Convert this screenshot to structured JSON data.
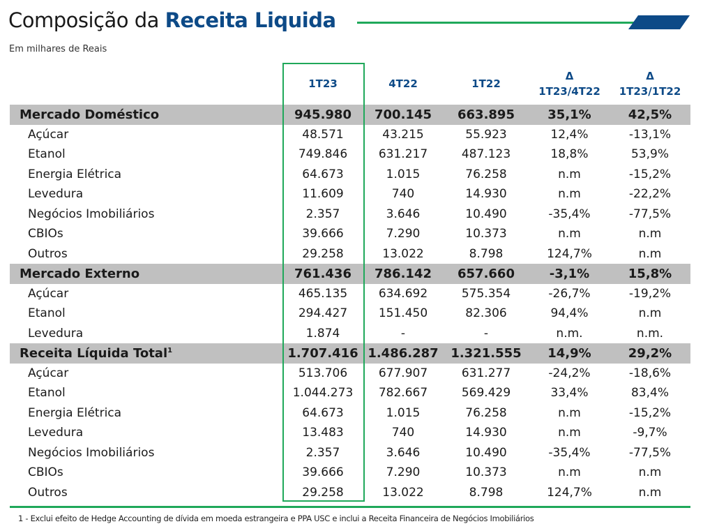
{
  "title": {
    "prefix": "Composição da",
    "highlight": "Receita Liquida"
  },
  "subtitle": "Em milhares de Reais",
  "columns": [
    {
      "top": "",
      "bottom": "1T23"
    },
    {
      "top": "",
      "bottom": "4T22"
    },
    {
      "top": "",
      "bottom": "1T22"
    },
    {
      "top": "Δ",
      "bottom": "1T23/4T22"
    },
    {
      "top": "Δ",
      "bottom": "1T23/1T22"
    }
  ],
  "rows": [
    {
      "section": true,
      "label": "Mercado Doméstico",
      "values": [
        "945.980",
        "700.145",
        "663.895",
        "35,1%",
        "42,5%"
      ]
    },
    {
      "label": "Açúcar",
      "values": [
        "48.571",
        "43.215",
        "55.923",
        "12,4%",
        "-13,1%"
      ]
    },
    {
      "label": "Etanol",
      "values": [
        "749.846",
        "631.217",
        "487.123",
        "18,8%",
        "53,9%"
      ]
    },
    {
      "label": "Energia Elétrica",
      "values": [
        "64.673",
        "1.015",
        "76.258",
        "n.m",
        "-15,2%"
      ]
    },
    {
      "label": "Levedura",
      "values": [
        "11.609",
        "740",
        "14.930",
        "n.m",
        "-22,2%"
      ]
    },
    {
      "label": "Negócios Imobiliários",
      "values": [
        "2.357",
        "3.646",
        "10.490",
        "-35,4%",
        "-77,5%"
      ]
    },
    {
      "label": "CBIOs",
      "values": [
        "39.666",
        "7.290",
        "10.373",
        "n.m",
        "n.m"
      ]
    },
    {
      "label": "Outros",
      "values": [
        "29.258",
        "13.022",
        "8.798",
        "124,7%",
        "n.m"
      ]
    },
    {
      "section": true,
      "label": "Mercado Externo",
      "values": [
        "761.436",
        "786.142",
        "657.660",
        "-3,1%",
        "15,8%"
      ]
    },
    {
      "label": "Açúcar",
      "values": [
        "465.135",
        "634.692",
        "575.354",
        "-26,7%",
        "-19,2%"
      ]
    },
    {
      "label": "Etanol",
      "values": [
        "294.427",
        "151.450",
        "82.306",
        "94,4%",
        "n.m"
      ]
    },
    {
      "label": "Levedura",
      "values": [
        "1.874",
        "-",
        "-",
        "n.m.",
        "n.m."
      ]
    },
    {
      "section": true,
      "label": "Receita Líquida Total",
      "sup": "1",
      "values": [
        "1.707.416",
        "1.486.287",
        "1.321.555",
        "14,9%",
        "29,2%"
      ]
    },
    {
      "label": "Açúcar",
      "values": [
        "513.706",
        "677.907",
        "631.277",
        "-24,2%",
        "-18,6%"
      ]
    },
    {
      "label": "Etanol",
      "values": [
        "1.044.273",
        "782.667",
        "569.429",
        "33,4%",
        "83,4%"
      ]
    },
    {
      "label": "Energia Elétrica",
      "values": [
        "64.673",
        "1.015",
        "76.258",
        "n.m",
        "-15,2%"
      ]
    },
    {
      "label": "Levedura",
      "values": [
        "13.483",
        "740",
        "14.930",
        "n.m",
        "-9,7%"
      ]
    },
    {
      "label": "Negócios Imobiliários",
      "values": [
        "2.357",
        "3.646",
        "10.490",
        "-35,4%",
        "-77,5%"
      ]
    },
    {
      "label": "CBIOs",
      "values": [
        "39.666",
        "7.290",
        "10.373",
        "n.m",
        "n.m"
      ]
    },
    {
      "label": "Outros",
      "values": [
        "29.258",
        "13.022",
        "8.798",
        "124,7%",
        "n.m"
      ]
    }
  ],
  "footnote": "1 - Exclui efeito de Hedge Accounting de dívida em moeda estrangeira e PPA USC e inclui a Receita Financeira de Negócios Imobiliários",
  "colors": {
    "brand_blue": "#0d4a87",
    "accent_green": "#1fa85a",
    "section_gray": "#c0c0c0"
  }
}
